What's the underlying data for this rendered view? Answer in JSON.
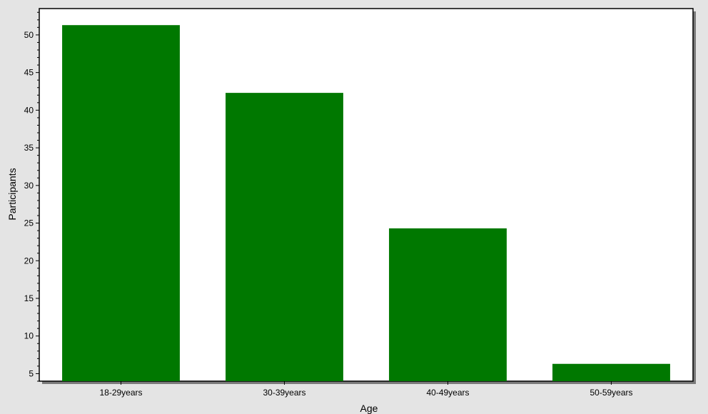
{
  "chart_data": {
    "type": "bar",
    "categories": [
      "18-29years",
      "30-39years",
      "40-49years",
      "50-59years"
    ],
    "values": [
      51.3,
      42.3,
      24.3,
      6.3
    ],
    "title": "",
    "xlabel": "Age",
    "ylabel": "Participants",
    "ylim": [
      4,
      53.5
    ],
    "yticks": [
      5,
      10,
      15,
      20,
      25,
      30,
      35,
      40,
      45,
      50
    ],
    "grid": false,
    "legend": "none",
    "bar_color": "#007800",
    "background_color": "#e4e4e4",
    "plot_background_color": "#ffffff"
  }
}
